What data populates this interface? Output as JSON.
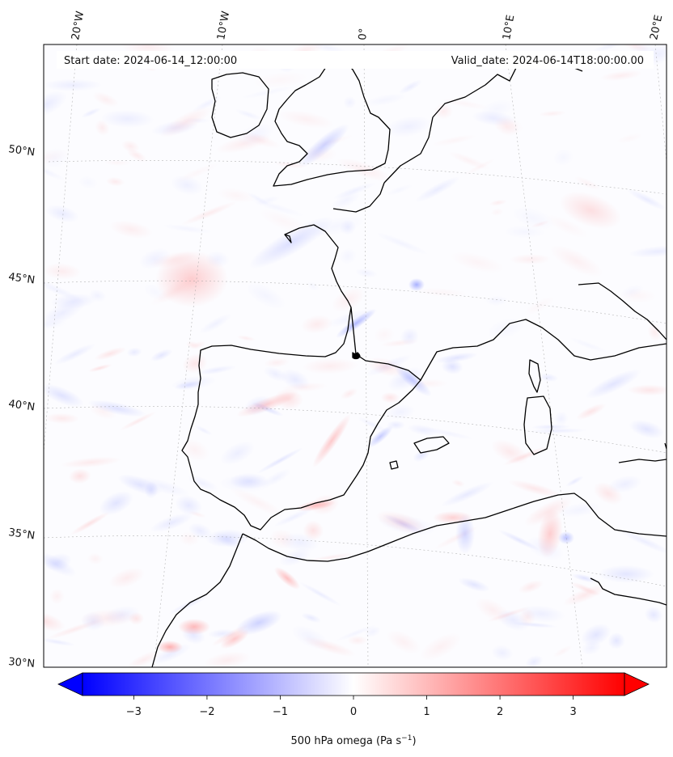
{
  "map": {
    "start_date": "Start date: 2024-06-14_12:00:00",
    "valid_date": "Valid_date: 2024-06-14T18:00:00.00",
    "lon_labels": [
      "20°W",
      "10°W",
      "0°",
      "10°E",
      "20°E"
    ],
    "lat_labels": [
      "50°N",
      "45°N",
      "40°N",
      "35°N",
      "30°N"
    ],
    "field": "500 hPa vertical velocity (omega)"
  },
  "colorbar": {
    "title": "500 hPa omega (Pa s",
    "title_sup": "−1",
    "title_end": ")",
    "ticks": [
      "−3",
      "−2",
      "−1",
      "0",
      "1",
      "2",
      "3"
    ],
    "tick_values": [
      -3,
      -2,
      -1,
      0,
      1,
      2,
      3
    ],
    "range": [
      -3.7,
      3.7
    ],
    "color_low": "#0000ff",
    "color_mid": "#ffffff",
    "color_high": "#ff0000"
  }
}
